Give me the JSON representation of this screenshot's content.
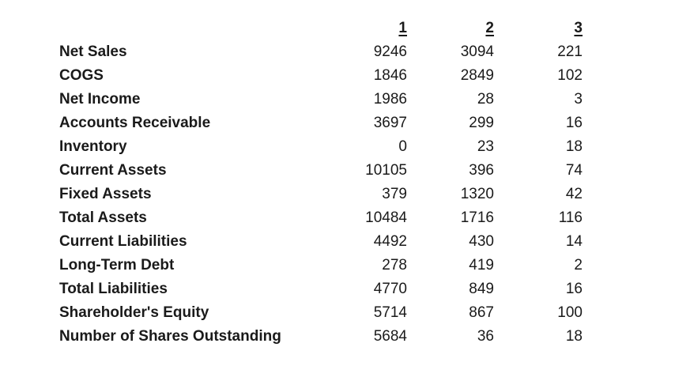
{
  "page": {
    "background_color": "#ffffff",
    "text_color": "#1a1a1a"
  },
  "table": {
    "column_headers": [
      "1",
      "2",
      "3"
    ],
    "rows": [
      {
        "label": "Net Sales",
        "values": [
          "9246",
          "3094",
          "221"
        ]
      },
      {
        "label": "COGS",
        "values": [
          "1846",
          "2849",
          "102"
        ]
      },
      {
        "label": "Net Income",
        "values": [
          "1986",
          "28",
          "3"
        ]
      },
      {
        "label": "Accounts Receivable",
        "values": [
          "3697",
          "299",
          "16"
        ]
      },
      {
        "label": "Inventory",
        "values": [
          "0",
          "23",
          "18"
        ]
      },
      {
        "label": "Current Assets",
        "values": [
          "10105",
          "396",
          "74"
        ]
      },
      {
        "label": "Fixed Assets",
        "values": [
          "379",
          "1320",
          "42"
        ]
      },
      {
        "label": "Total Assets",
        "values": [
          "10484",
          "1716",
          "116"
        ]
      },
      {
        "label": "Current Liabilities",
        "values": [
          "4492",
          "430",
          "14"
        ]
      },
      {
        "label": "Long-Term Debt",
        "values": [
          "278",
          "419",
          "2"
        ]
      },
      {
        "label": "Total Liabilities",
        "values": [
          "4770",
          "849",
          "16"
        ]
      },
      {
        "label": "Shareholder's Equity",
        "values": [
          "5714",
          "867",
          "100"
        ]
      },
      {
        "label": "Number of Shares Outstanding",
        "values": [
          "5684",
          "36",
          "18"
        ]
      }
    ]
  }
}
